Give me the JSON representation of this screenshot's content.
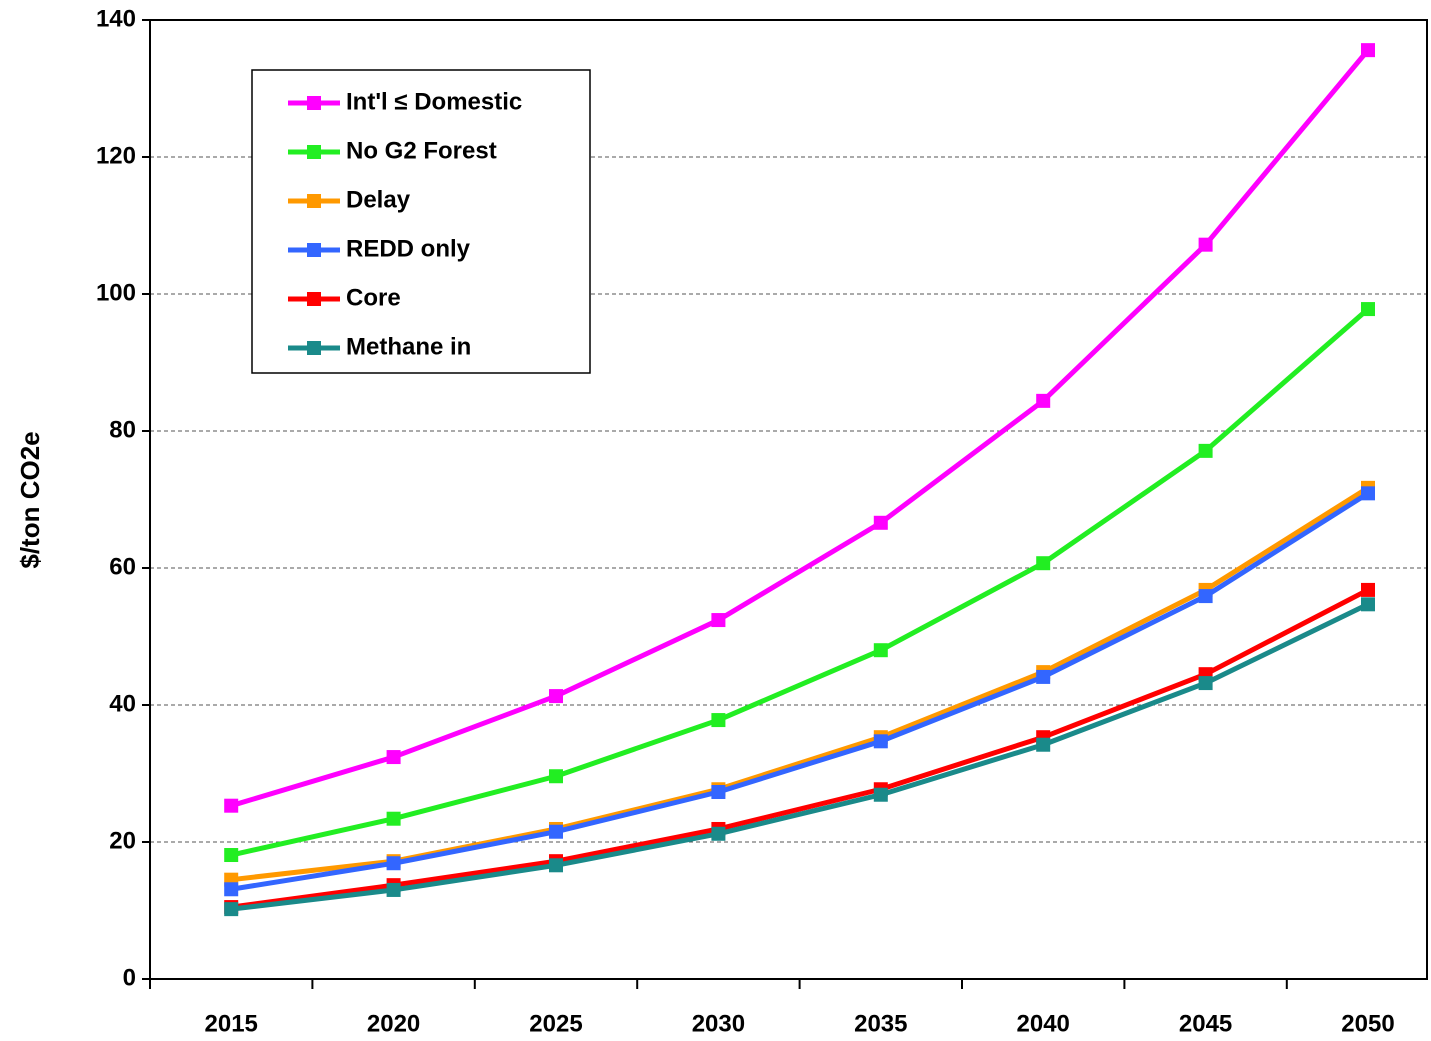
{
  "chart_data": {
    "type": "line",
    "y_label": "$/ton CO2e",
    "categories": [
      "2015",
      "2020",
      "2025",
      "2030",
      "2035",
      "2040",
      "2045",
      "2050"
    ],
    "series": [
      {
        "name": "Int'l ≤ Domestic",
        "color": "#ff00ff",
        "values": [
          25.3,
          32.4,
          41.3,
          52.4,
          66.6,
          84.4,
          107.2,
          135.6
        ]
      },
      {
        "name": "No G2 Forest",
        "color": "#22ee22",
        "values": [
          18.1,
          23.4,
          29.6,
          37.8,
          48.0,
          60.7,
          77.1,
          97.8
        ]
      },
      {
        "name": "Delay",
        "color": "#ff9900",
        "values": [
          14.5,
          17.2,
          21.9,
          27.7,
          35.3,
          44.8,
          56.8,
          71.7
        ]
      },
      {
        "name": "REDD only",
        "color": "#3366ff",
        "values": [
          13.1,
          16.9,
          21.5,
          27.3,
          34.7,
          44.1,
          55.9,
          70.9
        ]
      },
      {
        "name": "Core",
        "color": "#ff0000",
        "values": [
          10.5,
          13.7,
          17.2,
          21.9,
          27.7,
          35.3,
          44.5,
          56.8
        ]
      },
      {
        "name": "Methane in",
        "color": "#1a8a8a",
        "values": [
          10.2,
          13.0,
          16.6,
          21.2,
          26.9,
          34.2,
          43.2,
          54.7
        ]
      }
    ],
    "ylim": [
      0,
      140
    ],
    "yticks": [
      0,
      20,
      40,
      60,
      80,
      100,
      120,
      140
    ],
    "grid": true,
    "legend": "top-left"
  }
}
